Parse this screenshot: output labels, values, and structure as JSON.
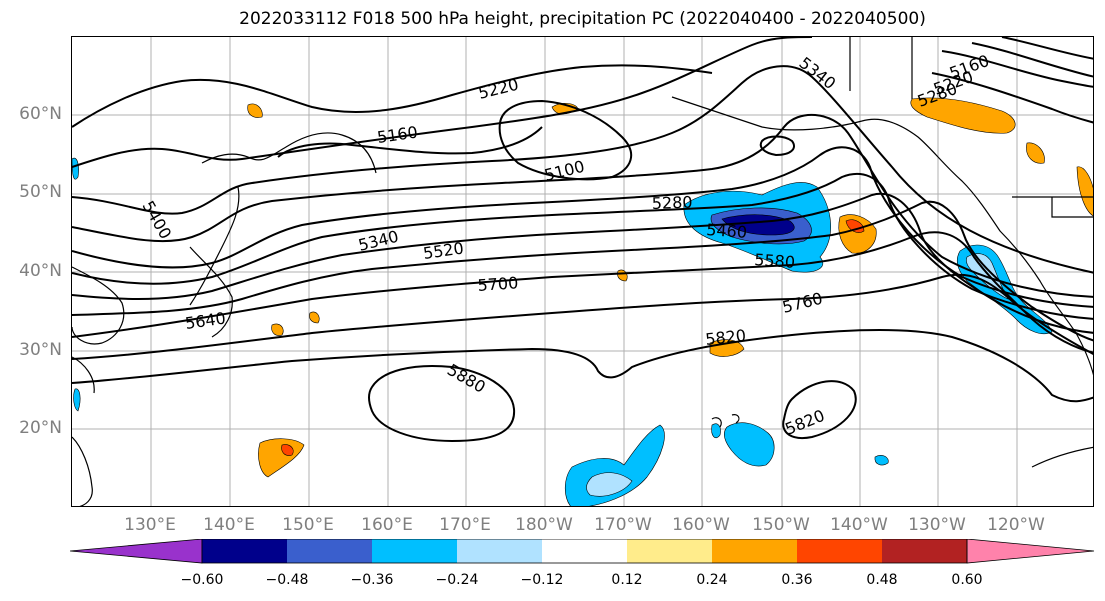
{
  "title": "2022033112 F018 500 hPa height, precipitation PC (2022040400 - 2022040500)",
  "lat_labels": [
    "60°N",
    "50°N",
    "40°N",
    "30°N",
    "20°N"
  ],
  "lon_labels": [
    "130°E",
    "140°E",
    "150°E",
    "160°E",
    "170°E",
    "180°W",
    "170°W",
    "160°W",
    "150°W",
    "140°W",
    "130°W",
    "120°W"
  ],
  "contour_labels": [
    "5400",
    "5220",
    "5160",
    "5100",
    "5340",
    "5160",
    "5220",
    "5280",
    "5340",
    "5280",
    "5460",
    "5520",
    "5580",
    "5640",
    "5700",
    "5760",
    "5820",
    "5880",
    "5820"
  ],
  "colorbar": {
    "ticks": [
      "−0.60",
      "−0.48",
      "−0.36",
      "−0.24",
      "−0.12",
      "0.12",
      "0.24",
      "0.36",
      "0.48",
      "0.60"
    ],
    "colors": [
      "#9932cc",
      "#00008b",
      "#3a5fcd",
      "#00bfff",
      "#b0e2ff",
      "#ffffff",
      "#ffec8b",
      "#ffa500",
      "#ff4500",
      "#b22222",
      "#ff82ab"
    ]
  }
}
